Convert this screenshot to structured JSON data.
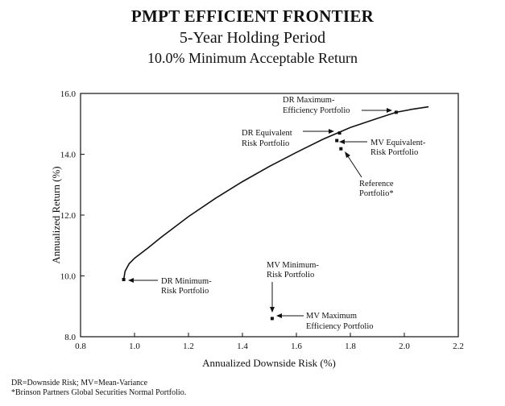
{
  "chart_data": {
    "type": "line",
    "title": "PMPT EFFICIENT FRONTIER",
    "subtitle1": "5-Year Holding Period",
    "subtitle2": "10.0% Minimum Acceptable Return",
    "xlabel": "Annualized Downside Risk (%)",
    "ylabel": "Annualized Return (%)",
    "xlim": [
      0.8,
      2.2
    ],
    "ylim": [
      8.0,
      16.0
    ],
    "x_ticks": [
      "0.8",
      "1.0",
      "1.2",
      "1.4",
      "1.6",
      "1.8",
      "2.0",
      "2.2"
    ],
    "x_tick_values": [
      0.8,
      1.0,
      1.2,
      1.4,
      1.6,
      1.8,
      2.0,
      2.2
    ],
    "y_ticks": [
      "8.0",
      "10.0",
      "12.0",
      "14.0",
      "16.0"
    ],
    "y_tick_values": [
      8.0,
      10.0,
      12.0,
      14.0,
      16.0
    ],
    "series": [
      {
        "name": "Efficient Frontier",
        "x": [
          0.96,
          0.965,
          0.98,
          1.0,
          1.05,
          1.1,
          1.2,
          1.3,
          1.4,
          1.5,
          1.6,
          1.7,
          1.8,
          1.9,
          1.97,
          2.03,
          2.09
        ],
        "y": [
          9.88,
          10.15,
          10.4,
          10.58,
          10.92,
          11.28,
          11.95,
          12.55,
          13.1,
          13.6,
          14.06,
          14.5,
          14.88,
          15.18,
          15.38,
          15.48,
          15.56
        ]
      }
    ],
    "points": [
      {
        "name": "DR Maximum-Efficiency Portfolio",
        "x": 1.97,
        "y": 15.38
      },
      {
        "name": "DR Equivalent Risk Portfolio",
        "x": 1.76,
        "y": 14.7
      },
      {
        "name": "MV Equivalent-Risk Portfolio",
        "x": 1.75,
        "y": 14.45
      },
      {
        "name": "Reference Portfolio",
        "x": 1.765,
        "y": 14.18
      },
      {
        "name": "DR Minimum-Risk Portfolio",
        "x": 0.96,
        "y": 9.88
      },
      {
        "name": "MV Maximum Efficiency Portfolio",
        "x": 1.51,
        "y": 8.6
      }
    ],
    "annotations": {
      "dr_max_line1": "DR Maximum-",
      "dr_max_line2": "Efficiency Portfolio",
      "dr_eq_line1": "DR Equivalent",
      "dr_eq_line2": "Risk Portfolio",
      "mv_eq_line1": "MV Equivalent-",
      "mv_eq_line2": "Risk Portfolio",
      "ref_line1": "Reference",
      "ref_line2": "Portfolio*",
      "dr_min_line1": "DR Minimum-",
      "dr_min_line2": "Risk Portfolio",
      "mv_min_line1": "MV Minimum-",
      "mv_min_line2": "Risk Portfolio",
      "mv_maxeff_line1": "MV Maximum",
      "mv_maxeff_line2": "Efficiency Portfolio"
    },
    "footnotes": [
      "DR=Downside Risk; MV=Mean-Variance",
      "*Brinson Partners Global Securities Normal Portfolio."
    ]
  }
}
